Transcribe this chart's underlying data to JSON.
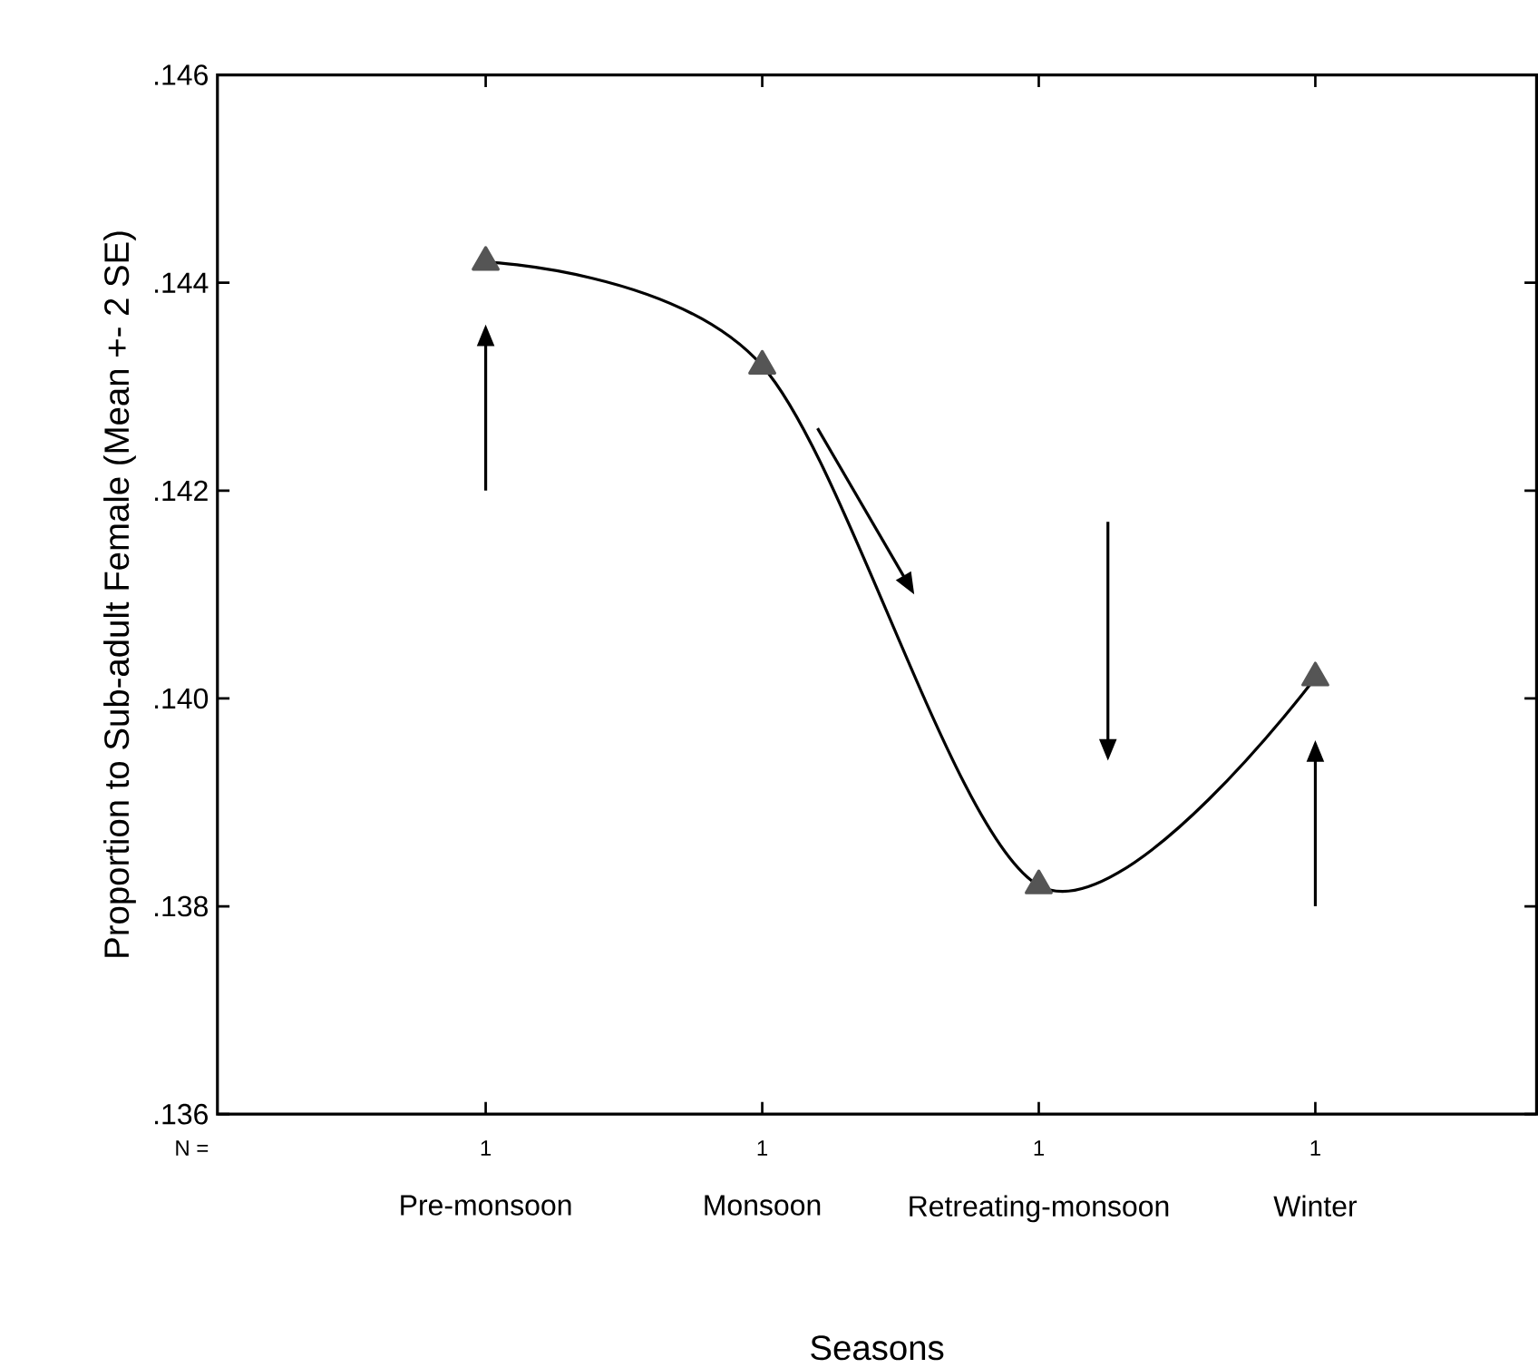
{
  "chart_data": {
    "type": "line",
    "xlabel": "Seasons",
    "ylabel": "Proportion to Sub-adult Female (Mean +- 2 SE)",
    "categories": [
      "Pre-monsoon",
      "Monsoon",
      "Retreating-monsoon",
      "Winter"
    ],
    "series": [
      {
        "color": "#555555",
        "values": [
          0.1442,
          0.1432,
          0.1382,
          0.1402
        ]
      }
    ],
    "marker": "triangle",
    "grid": false,
    "ylim": [
      0.136,
      0.146
    ],
    "yticks": [
      {
        "value": 0.136,
        "label": ".136"
      },
      {
        "value": 0.138,
        "label": ".138"
      },
      {
        "value": 0.14,
        "label": ".140"
      },
      {
        "value": 0.142,
        "label": ".142"
      },
      {
        "value": 0.144,
        "label": ".144"
      },
      {
        "value": 0.146,
        "label": ".146"
      }
    ],
    "annotations": [
      "N =",
      "1",
      "1",
      "1",
      "1"
    ]
  }
}
